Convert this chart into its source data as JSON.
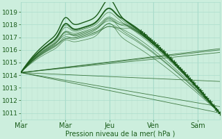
{
  "bg_color": "#cceedd",
  "grid_color_h": "#aaddcc",
  "grid_color_v": "#bbddcc",
  "line_color": "#1a5c1a",
  "xlabel": "Pression niveau de la mer( hPa )",
  "ylim": [
    1010.5,
    1019.8
  ],
  "yticks": [
    1011,
    1012,
    1013,
    1014,
    1015,
    1016,
    1017,
    1018,
    1019
  ],
  "days": [
    "Mar",
    "Mar",
    "Jeu",
    "Ven",
    "Sam"
  ],
  "day_positions": [
    0,
    48,
    96,
    144,
    192
  ],
  "total_hours": 216,
  "xlim": [
    0,
    216
  ]
}
